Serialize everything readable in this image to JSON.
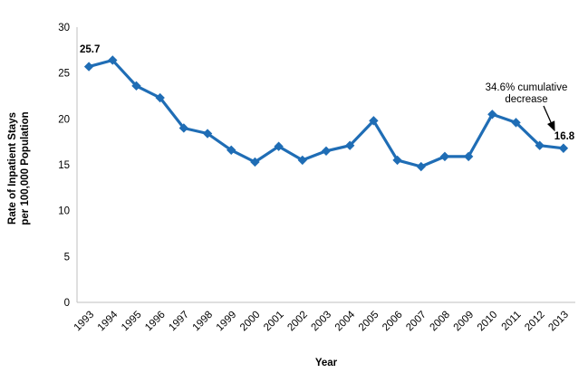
{
  "chart_data": {
    "type": "line",
    "title": "",
    "xlabel": "Year",
    "ylabel_lines": [
      "Rate of Inpatient Stays",
      "per 100,000 Population"
    ],
    "categories": [
      "1993",
      "1994",
      "1995",
      "1996",
      "1997",
      "1998",
      "1999",
      "2000",
      "2001",
      "2002",
      "2003",
      "2004",
      "2005",
      "2006",
      "2007",
      "2008",
      "2009",
      "2010",
      "2011",
      "2012",
      "2013"
    ],
    "values": [
      25.7,
      26.4,
      23.6,
      22.3,
      19.0,
      18.4,
      16.6,
      15.3,
      17.0,
      15.5,
      16.5,
      17.1,
      19.8,
      15.5,
      14.8,
      15.9,
      15.9,
      20.5,
      19.6,
      17.1,
      16.8
    ],
    "ylim": [
      0,
      30
    ],
    "ytick_step": 5,
    "grid": false,
    "legend": "none",
    "line_color": "#1F6DB5",
    "marker_shape": "diamond",
    "axis_color": "#BFBFBF",
    "annotations": {
      "first_point_label": "25.7",
      "last_point_label": "16.8",
      "callout_line1": "34.6% cumulative",
      "callout_line2": "decrease"
    }
  }
}
